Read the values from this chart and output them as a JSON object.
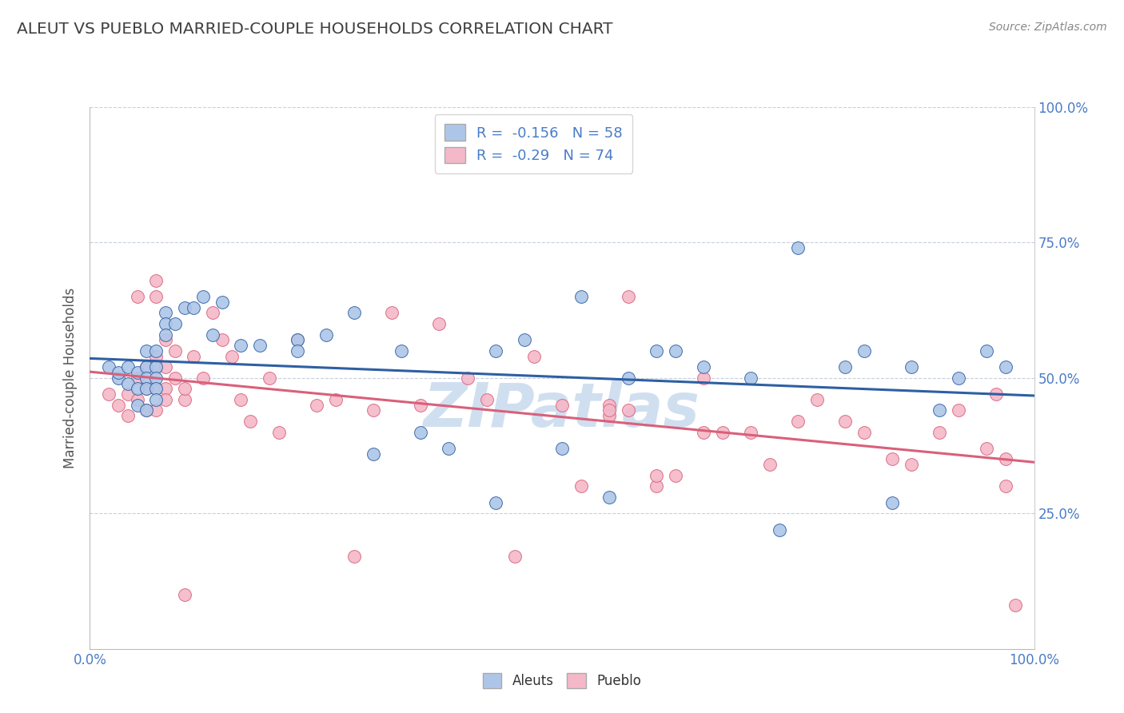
{
  "title": "ALEUT VS PUEBLO MARRIED-COUPLE HOUSEHOLDS CORRELATION CHART",
  "source": "Source: ZipAtlas.com",
  "ylabel": "Married-couple Households",
  "xlim": [
    0.0,
    1.0
  ],
  "ylim": [
    0.0,
    1.0
  ],
  "aleuts_R": -0.156,
  "aleuts_N": 58,
  "pueblo_R": -0.29,
  "pueblo_N": 74,
  "aleuts_color": "#adc6e8",
  "pueblo_color": "#f4b8c8",
  "aleuts_line_color": "#2e5fa3",
  "pueblo_line_color": "#d9607a",
  "watermark": "ZIPatlas",
  "watermark_color": "#d0dff0",
  "grid_color": "#c8d0dc",
  "title_color": "#404040",
  "tick_color": "#4a7cc7",
  "label_color": "#555555",
  "aleuts_x": [
    0.02,
    0.03,
    0.03,
    0.04,
    0.04,
    0.05,
    0.05,
    0.05,
    0.06,
    0.06,
    0.06,
    0.06,
    0.06,
    0.07,
    0.07,
    0.07,
    0.07,
    0.07,
    0.08,
    0.08,
    0.08,
    0.09,
    0.1,
    0.11,
    0.12,
    0.13,
    0.14,
    0.16,
    0.18,
    0.22,
    0.25,
    0.28,
    0.3,
    0.33,
    0.38,
    0.43,
    0.46,
    0.5,
    0.55,
    0.57,
    0.6,
    0.62,
    0.65,
    0.7,
    0.73,
    0.75,
    0.8,
    0.82,
    0.85,
    0.87,
    0.9,
    0.92,
    0.95,
    0.97,
    0.22,
    0.35,
    0.43,
    0.52
  ],
  "aleuts_y": [
    0.52,
    0.5,
    0.51,
    0.49,
    0.52,
    0.51,
    0.48,
    0.45,
    0.55,
    0.52,
    0.5,
    0.48,
    0.44,
    0.55,
    0.52,
    0.5,
    0.48,
    0.46,
    0.62,
    0.6,
    0.58,
    0.6,
    0.63,
    0.63,
    0.65,
    0.58,
    0.64,
    0.56,
    0.56,
    0.57,
    0.58,
    0.62,
    0.36,
    0.55,
    0.37,
    0.27,
    0.57,
    0.37,
    0.28,
    0.5,
    0.55,
    0.55,
    0.52,
    0.5,
    0.22,
    0.74,
    0.52,
    0.55,
    0.27,
    0.52,
    0.44,
    0.5,
    0.55,
    0.52,
    0.55,
    0.4,
    0.55,
    0.65
  ],
  "pueblo_x": [
    0.02,
    0.03,
    0.04,
    0.04,
    0.05,
    0.05,
    0.06,
    0.06,
    0.06,
    0.07,
    0.07,
    0.07,
    0.07,
    0.07,
    0.08,
    0.08,
    0.08,
    0.08,
    0.09,
    0.09,
    0.1,
    0.1,
    0.1,
    0.11,
    0.12,
    0.13,
    0.14,
    0.15,
    0.16,
    0.17,
    0.19,
    0.2,
    0.22,
    0.24,
    0.26,
    0.28,
    0.3,
    0.32,
    0.35,
    0.37,
    0.4,
    0.42,
    0.45,
    0.47,
    0.5,
    0.52,
    0.55,
    0.55,
    0.55,
    0.57,
    0.6,
    0.6,
    0.62,
    0.65,
    0.65,
    0.67,
    0.7,
    0.72,
    0.75,
    0.77,
    0.8,
    0.82,
    0.85,
    0.87,
    0.9,
    0.92,
    0.95,
    0.96,
    0.97,
    0.97,
    0.98,
    0.05,
    0.07,
    0.57
  ],
  "pueblo_y": [
    0.47,
    0.45,
    0.43,
    0.47,
    0.5,
    0.46,
    0.52,
    0.48,
    0.44,
    0.54,
    0.52,
    0.48,
    0.44,
    0.68,
    0.57,
    0.52,
    0.48,
    0.46,
    0.55,
    0.5,
    0.46,
    0.48,
    0.1,
    0.54,
    0.5,
    0.62,
    0.57,
    0.54,
    0.46,
    0.42,
    0.5,
    0.4,
    0.57,
    0.45,
    0.46,
    0.17,
    0.44,
    0.62,
    0.45,
    0.6,
    0.5,
    0.46,
    0.17,
    0.54,
    0.45,
    0.3,
    0.45,
    0.43,
    0.44,
    0.44,
    0.3,
    0.32,
    0.32,
    0.5,
    0.4,
    0.4,
    0.4,
    0.34,
    0.42,
    0.46,
    0.42,
    0.4,
    0.35,
    0.34,
    0.4,
    0.44,
    0.37,
    0.47,
    0.35,
    0.3,
    0.08,
    0.65,
    0.65,
    0.65
  ]
}
